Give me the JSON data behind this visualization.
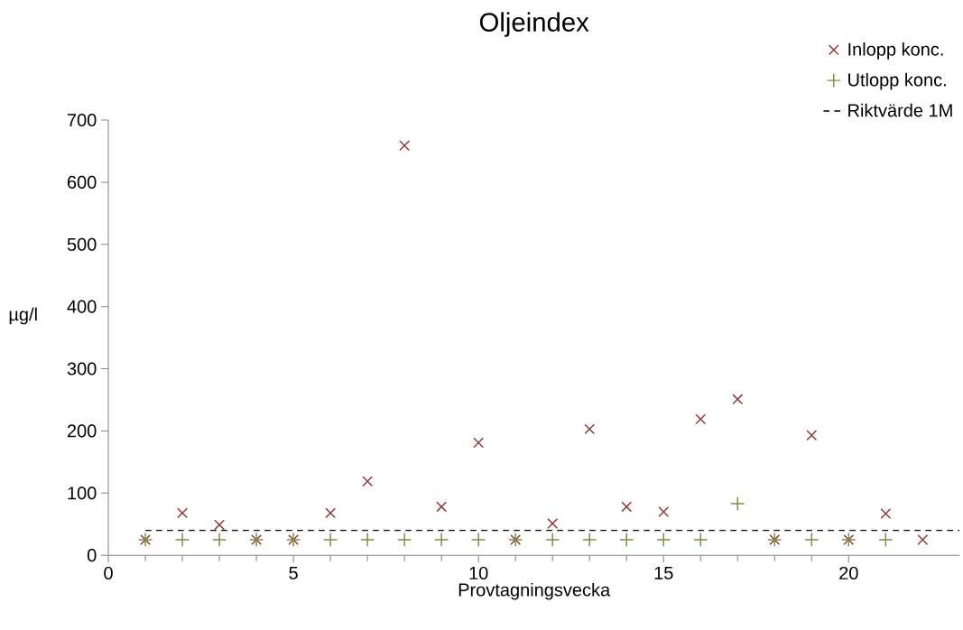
{
  "chart_data": {
    "type": "scatter",
    "title": "Oljeindex",
    "xlabel": "Provtagningsvecka",
    "ylabel": "µg/l",
    "x": [
      1,
      2,
      3,
      4,
      5,
      6,
      7,
      8,
      9,
      10,
      11,
      12,
      13,
      14,
      15,
      16,
      17,
      18,
      19,
      20,
      21,
      22
    ],
    "series": [
      {
        "name": "Inlopp konc.",
        "color": "#953735",
        "marker": "x",
        "values": [
          25,
          68,
          49,
          25,
          25,
          68,
          119,
          659,
          78,
          181,
          25,
          51,
          203,
          78,
          70,
          219,
          251,
          25,
          193,
          25,
          67,
          25
        ]
      },
      {
        "name": "Utlopp konc.",
        "color": "#77933c",
        "marker": "cross",
        "values": [
          25,
          25,
          25,
          25,
          25,
          25,
          25,
          25,
          25,
          25,
          25,
          25,
          25,
          25,
          25,
          25,
          83,
          25,
          25,
          25,
          25,
          null
        ]
      },
      {
        "name": "Riktvärde 1M",
        "type": "line",
        "color": "#000000",
        "line_style": "dashed",
        "marker": "none",
        "x": [
          1,
          23
        ],
        "values": [
          40,
          40
        ]
      }
    ],
    "xlim": [
      0,
      23
    ],
    "xticks": [
      0,
      5,
      10,
      15,
      20
    ],
    "ylim": [
      0,
      700
    ],
    "yticks": [
      0,
      100,
      200,
      300,
      400,
      500,
      600,
      700
    ],
    "grid": false,
    "legend": "top right"
  }
}
